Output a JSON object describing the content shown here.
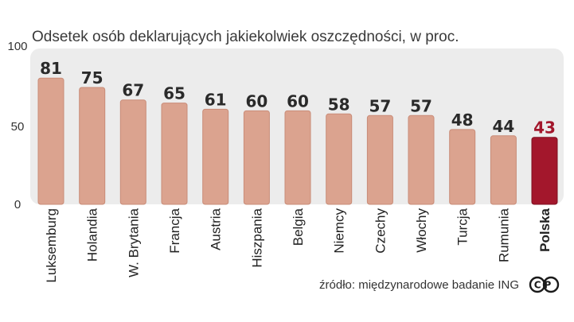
{
  "chart_data": {
    "type": "bar",
    "title": "Odsetek osób deklarujących jakiekolwiek oszczędności, w proc.",
    "categories": [
      "Luksemburg",
      "Holandia",
      "W. Brytania",
      "Francja",
      "Austria",
      "Hiszpania",
      "Belgia",
      "Niemcy",
      "Czechy",
      "Włochy",
      "Turcja",
      "Rumunia",
      "Polska"
    ],
    "values": [
      81,
      75,
      67,
      65,
      61,
      60,
      60,
      58,
      57,
      57,
      48,
      44,
      43
    ],
    "highlight": "Polska",
    "ylim": [
      0,
      100
    ],
    "yticks": [
      "100",
      "50",
      "0"
    ],
    "xlabel": "",
    "ylabel": "",
    "grid": false,
    "source": "źródło: międzynarodowe badanie ING",
    "logo_text": "CP"
  },
  "colors": {
    "bar": "#dba38f",
    "bar_stroke": "#c98c78",
    "highlight_bar": "#a3172c",
    "highlight_value": "#a3172c",
    "panel": "#ececec",
    "text": "#222222"
  }
}
